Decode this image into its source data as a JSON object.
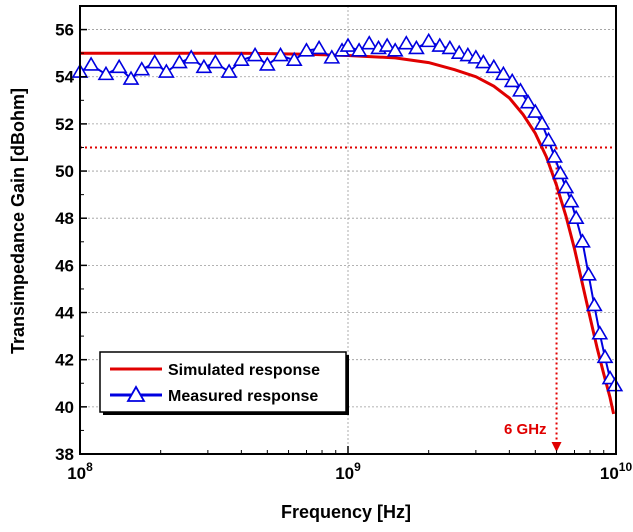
{
  "chart_data": {
    "type": "line",
    "xlabel": "Frequency [Hz]",
    "ylabel": "Transimpedance Gain [dBohm]",
    "xscale": "log",
    "xlim": [
      100000000,
      10000000000
    ],
    "ylim": [
      38,
      57
    ],
    "x_ticks": [
      {
        "value": 100000000,
        "base": "10",
        "exp": "8"
      },
      {
        "value": 1000000000,
        "base": "10",
        "exp": "9"
      },
      {
        "value": 10000000000,
        "base": "10",
        "exp": "10"
      }
    ],
    "y_ticks": [
      38,
      40,
      42,
      44,
      46,
      48,
      50,
      52,
      54,
      56
    ],
    "grid": true,
    "legend_position": "bottom-left",
    "series": [
      {
        "name": "Simulated response",
        "color": "#e00000",
        "marker": "none",
        "x": [
          100000000,
          200000000,
          400000000,
          700000000,
          1000000000,
          1500000000,
          2000000000,
          2500000000,
          3000000000,
          3500000000,
          4000000000,
          4500000000,
          5000000000,
          5500000000,
          6000000000,
          6500000000,
          7000000000,
          7500000000,
          8000000000,
          8500000000,
          9000000000,
          9500000000,
          9800000000
        ],
        "y": [
          55.0,
          55.0,
          55.0,
          54.95,
          54.9,
          54.8,
          54.6,
          54.3,
          54.0,
          53.6,
          53.1,
          52.4,
          51.6,
          50.6,
          49.4,
          48.1,
          46.7,
          45.2,
          43.8,
          42.5,
          41.4,
          40.4,
          39.7
        ]
      },
      {
        "name": "Measured response",
        "color": "#0000e0",
        "marker": "triangle",
        "x": [
          100000000,
          110000000,
          125000000,
          140000000,
          155000000,
          170000000,
          190000000,
          210000000,
          235000000,
          260000000,
          290000000,
          320000000,
          360000000,
          400000000,
          450000000,
          500000000,
          560000000,
          630000000,
          700000000,
          780000000,
          870000000,
          950000000,
          1000000000,
          1100000000,
          1200000000,
          1300000000,
          1400000000,
          1500000000,
          1650000000,
          1800000000,
          2000000000,
          2200000000,
          2400000000,
          2600000000,
          2800000000,
          3000000000,
          3200000000,
          3500000000,
          3800000000,
          4100000000,
          4400000000,
          4700000000,
          5000000000,
          5300000000,
          5600000000,
          5900000000,
          6200000000,
          6500000000,
          6800000000,
          7100000000,
          7500000000,
          7900000000,
          8300000000,
          8700000000,
          9100000000,
          9500000000,
          9900000000
        ],
        "y": [
          54.2,
          54.5,
          54.1,
          54.4,
          53.9,
          54.3,
          54.6,
          54.2,
          54.6,
          54.8,
          54.4,
          54.6,
          54.2,
          54.7,
          54.9,
          54.5,
          54.9,
          54.7,
          55.1,
          55.2,
          54.8,
          55.1,
          55.3,
          55.1,
          55.4,
          55.2,
          55.3,
          55.1,
          55.4,
          55.2,
          55.5,
          55.3,
          55.2,
          55.0,
          54.9,
          54.8,
          54.6,
          54.4,
          54.1,
          53.8,
          53.4,
          52.9,
          52.5,
          52.0,
          51.3,
          50.6,
          49.9,
          49.3,
          48.7,
          48.0,
          47.0,
          45.6,
          44.3,
          43.1,
          42.1,
          41.2,
          40.9
        ]
      }
    ],
    "annotations": [
      {
        "text": "6 GHz",
        "color": "#e00000",
        "x": 6000000000,
        "y_ref": 51
      }
    ],
    "reference_lines": [
      {
        "orientation": "horizontal",
        "y": 51,
        "style": "dotted",
        "color": "#e00000"
      },
      {
        "orientation": "vertical",
        "x": 6000000000,
        "style": "dotted",
        "color": "#e00000"
      }
    ]
  }
}
